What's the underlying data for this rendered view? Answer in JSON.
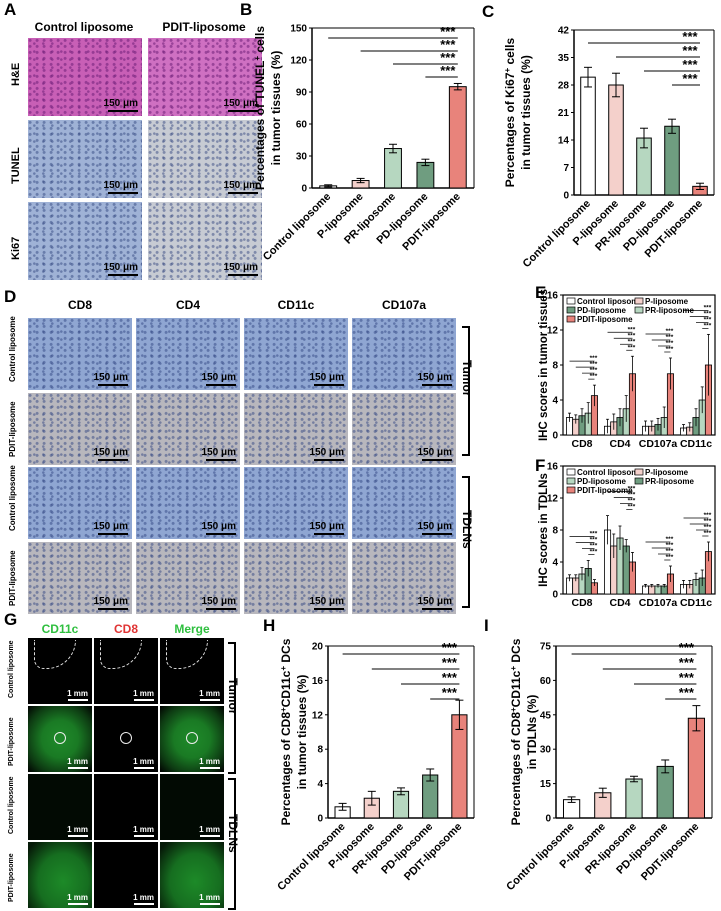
{
  "panel_letters": {
    "A": "A",
    "B": "B",
    "C": "C",
    "D": "D",
    "E": "E",
    "F": "F",
    "G": "G",
    "H": "H",
    "I": "I"
  },
  "panelA": {
    "columns": [
      "Control liposome",
      "PDIT-liposome"
    ],
    "rows": [
      "H&E",
      "TUNEL",
      "Ki67"
    ],
    "scale": "150 μm",
    "colors": {
      "he_ctrl": "#c85fb6",
      "he_pdit": "#cf70c2",
      "ihc_ctrl": "#9fb2d6",
      "ihc_pdit": "#c7cbd3"
    }
  },
  "panelD": {
    "columns": [
      "CD8",
      "CD4",
      "CD11c",
      "CD107a"
    ],
    "rows": [
      "Control liposome",
      "PDIT-liposome",
      "Control liposome",
      "PDIT-liposome"
    ],
    "groups": [
      "Tumor",
      "TDLNs"
    ],
    "scale": "150 μm",
    "colors": {
      "ctrl": "#8fa6d2",
      "pdit": "#b8b7bd"
    }
  },
  "panelG": {
    "columns": [
      "CD11c",
      "CD8",
      "Merge"
    ],
    "column_colors": [
      "#2fbf3f",
      "#e03434",
      "#2fbf3f"
    ],
    "rows": [
      "Control liposome",
      "PDIT-liposome",
      "Control liposome",
      "PDIT-liposome"
    ],
    "groups": [
      "Tumor",
      "TDLNs"
    ],
    "scale": "1 mm"
  },
  "chart_data": [
    {
      "panel": "B",
      "type": "bar",
      "categories": [
        "Control liposome",
        "P-liposome",
        "PR-liposome",
        "PD-liposome",
        "PDIT-liposome"
      ],
      "values": [
        2,
        7,
        37,
        24,
        95
      ],
      "errors": [
        1,
        2,
        4,
        3,
        3
      ],
      "colors": [
        "#ffffff",
        "#f4d0cb",
        "#b6d7c0",
        "#6f9d80",
        "#e8837b"
      ],
      "ylabel_line1": "Percentages of TUNEL",
      "ylabel_sup": "+",
      "ylabel_line1_tail": " cells",
      "ylabel_line2": "in tumor tissues (%)",
      "ylim": [
        0,
        150
      ],
      "yticks": [
        "0",
        "30",
        "60",
        "90",
        "120",
        "150"
      ],
      "significance": [
        "***",
        "***",
        "***",
        "***"
      ]
    },
    {
      "panel": "C",
      "type": "bar",
      "categories": [
        "Control liposome",
        "P-liposome",
        "PR-liposome",
        "PD-liposome",
        "PDIT-liposome"
      ],
      "values": [
        30,
        28,
        14.5,
        17.5,
        2.2
      ],
      "errors": [
        2.5,
        3,
        2.5,
        1.8,
        0.8
      ],
      "colors": [
        "#ffffff",
        "#f4d0cb",
        "#b6d7c0",
        "#6f9d80",
        "#e8837b"
      ],
      "ylabel_line1": "Percentages of Ki67",
      "ylabel_sup": "+",
      "ylabel_line1_tail": " cells",
      "ylabel_line2": "in tumor tissues (%)",
      "ylim": [
        0,
        42
      ],
      "yticks": [
        "0",
        "7",
        "14",
        "21",
        "28",
        "35",
        "42"
      ],
      "significance": [
        "***",
        "***",
        "***",
        "***"
      ]
    },
    {
      "panel": "E",
      "type": "bar",
      "categories": [
        "CD8",
        "CD4",
        "CD107a",
        "CD11c"
      ],
      "series": [
        {
          "name": "Control liposome",
          "values": [
            2.0,
            1.0,
            1.0,
            0.8
          ],
          "errors": [
            0.5,
            0.8,
            0.6,
            0.4
          ]
        },
        {
          "name": "P-liposome",
          "values": [
            1.8,
            1.5,
            1.0,
            0.9
          ],
          "errors": [
            0.5,
            0.9,
            0.6,
            0.5
          ]
        },
        {
          "name": "PD-liposome",
          "values": [
            2.2,
            2.0,
            1.2,
            2.0
          ],
          "errors": [
            0.8,
            1.0,
            0.7,
            1.0
          ]
        },
        {
          "name": "PR-liposome",
          "values": [
            2.5,
            3.0,
            2.0,
            4.0
          ],
          "errors": [
            1.2,
            1.5,
            1.2,
            1.5
          ]
        },
        {
          "name": "PDIT-liposome",
          "values": [
            4.5,
            7.0,
            7.0,
            8.0
          ],
          "errors": [
            1.2,
            2.0,
            1.8,
            3.5
          ]
        }
      ],
      "colors": [
        "#ffffff",
        "#f4d0cb",
        "#6f9d80",
        "#b6d7c0",
        "#e8837b"
      ],
      "ylabel": "IHC scores in tumor tissues",
      "ylim": [
        0,
        16
      ],
      "yticks": [
        "0",
        "4",
        "8",
        "12",
        "16"
      ],
      "significance": "***"
    },
    {
      "panel": "F",
      "type": "bar",
      "categories": [
        "CD8",
        "CD4",
        "CD107a",
        "CD11c"
      ],
      "series": [
        {
          "name": "Control liposome",
          "values": [
            2.0,
            8.0,
            1.0,
            1.2
          ],
          "errors": [
            0.4,
            1.8,
            0.2,
            0.5
          ]
        },
        {
          "name": "P-liposome",
          "values": [
            2.0,
            6.0,
            1.0,
            1.2
          ],
          "errors": [
            0.4,
            1.5,
            0.2,
            0.5
          ]
        },
        {
          "name": "PD-liposome",
          "values": [
            2.5,
            7.0,
            1.0,
            1.8
          ],
          "errors": [
            0.8,
            1.5,
            0.2,
            0.8
          ]
        },
        {
          "name": "PR-liposome",
          "values": [
            3.2,
            6.0,
            1.0,
            2.0
          ],
          "errors": [
            1.0,
            0.8,
            0.2,
            1.0
          ]
        },
        {
          "name": "PDIT-liposome",
          "values": [
            1.4,
            4.0,
            2.5,
            5.3
          ],
          "errors": [
            0.4,
            1.2,
            1.0,
            1.2
          ]
        }
      ],
      "colors": [
        "#ffffff",
        "#f4d0cb",
        "#b6d7c0",
        "#6f9d80",
        "#e8837b"
      ],
      "ylabel": "IHC scores in  TDLNs",
      "ylim": [
        0,
        16
      ],
      "yticks": [
        "0",
        "4",
        "8",
        "12",
        "16"
      ],
      "significance": "***"
    },
    {
      "panel": "H",
      "type": "bar",
      "categories": [
        "Control liposome",
        "P-liposome",
        "PR-liposome",
        "PD-liposome",
        "PDIT-liposome"
      ],
      "values": [
        1.3,
        2.3,
        3.1,
        5.0,
        12.0
      ],
      "errors": [
        0.4,
        0.8,
        0.4,
        0.7,
        1.7
      ],
      "colors": [
        "#ffffff",
        "#f4d0cb",
        "#b6d7c0",
        "#6f9d80",
        "#e8837b"
      ],
      "ylabel_line1": "Percentages of CD8",
      "ylabel_sup": "+",
      "ylabel_mid": "CD11c",
      "ylabel_sup2": "+",
      "ylabel_line1_tail": " DCs",
      "ylabel_line2": "in tumor tissues (%)",
      "ylim": [
        0,
        20
      ],
      "yticks": [
        "0",
        "4",
        "8",
        "12",
        "16",
        "20"
      ],
      "significance": [
        "***",
        "***",
        "***",
        "***"
      ]
    },
    {
      "panel": "I",
      "type": "bar",
      "categories": [
        "Control liposome",
        "P-liposome",
        "PR-liposome",
        "PD-liposome",
        "PDIT-liposome"
      ],
      "values": [
        8,
        11,
        17,
        22.5,
        43.5
      ],
      "errors": [
        1.2,
        2,
        1.2,
        2.8,
        5.5
      ],
      "colors": [
        "#ffffff",
        "#f4d0cb",
        "#b6d7c0",
        "#6f9d80",
        "#e8837b"
      ],
      "ylabel_line1": "Percentages of CD8",
      "ylabel_sup": "+",
      "ylabel_mid": "CD11c",
      "ylabel_sup2": "+",
      "ylabel_line1_tail": " DCs",
      "ylabel_line2": "in TDLNs (%)",
      "ylim": [
        0,
        75
      ],
      "yticks": [
        "0",
        "15",
        "30",
        "45",
        "60",
        "75"
      ],
      "significance": [
        "***",
        "***",
        "***",
        "***"
      ]
    }
  ]
}
